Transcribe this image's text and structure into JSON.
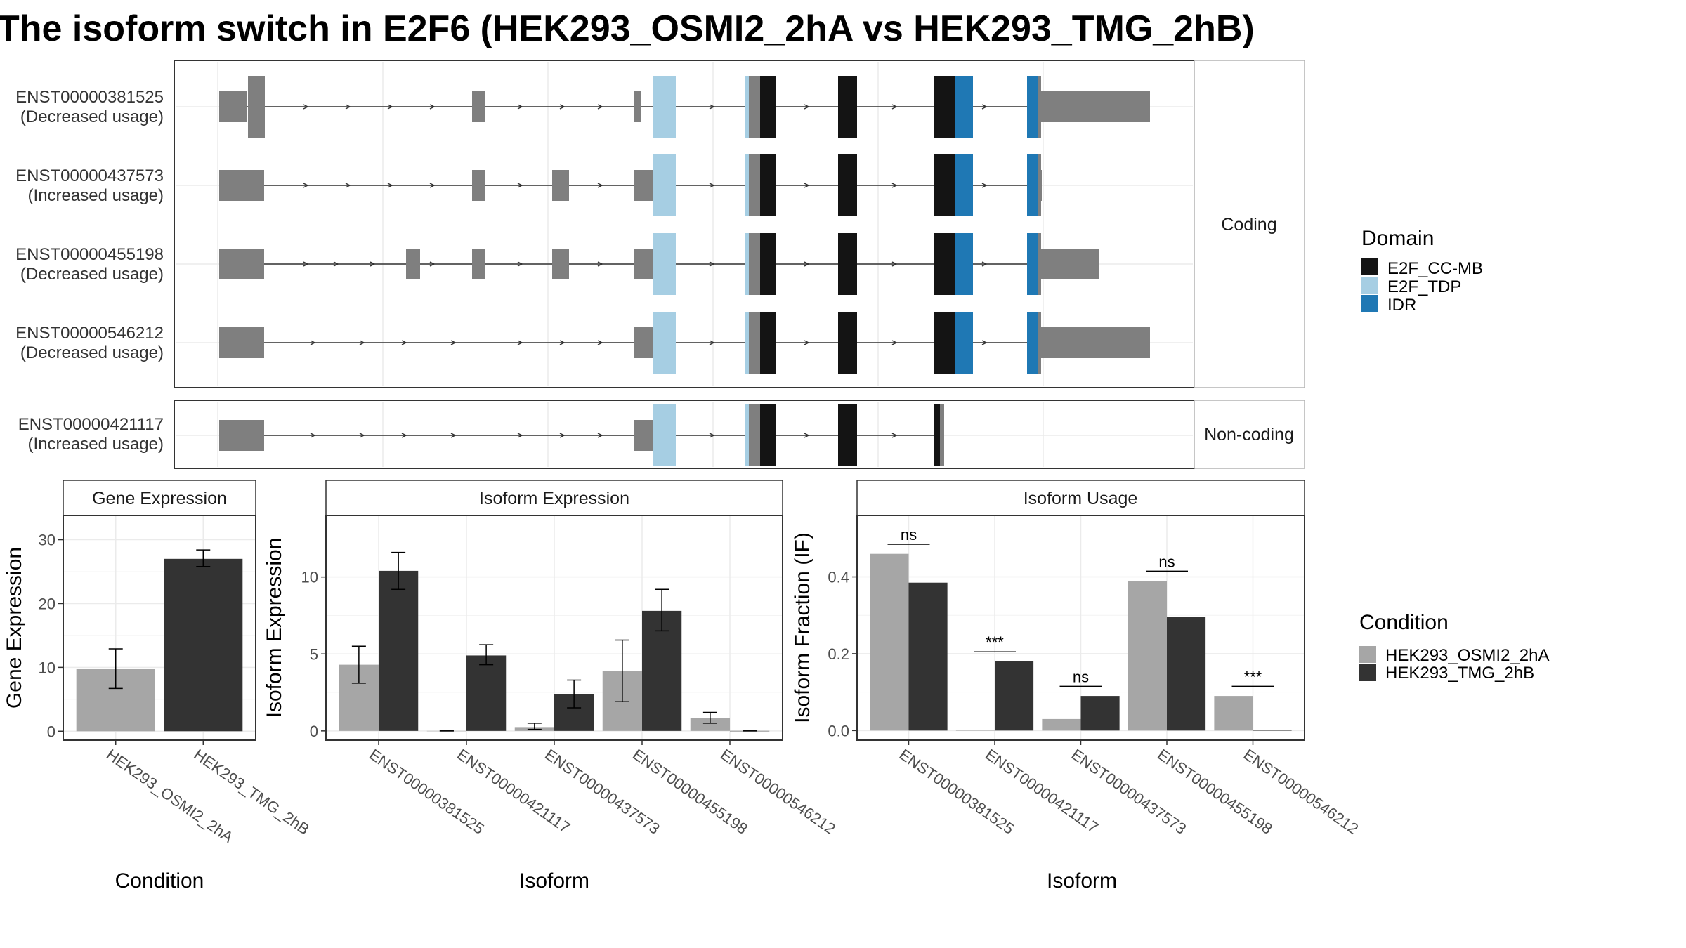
{
  "title": "The isoform switch in E2F6 (HEK293_OSMI2_2hA vs HEK293_TMG_2hB)",
  "colors": {
    "exon": "#7f7f7f",
    "domain_E2F_CC-MB": "#141414",
    "domain_E2F_TDP": "#a6cee3",
    "domain_IDR": "#1f78b4",
    "cond_HEK293_OSMI2_2hA": "#a6a6a6",
    "cond_HEK293_TMG_2hB": "#333333"
  },
  "transcripts": [
    {
      "id": "ENST00000381525",
      "usage": "(Decreased usage)",
      "group": "Coding"
    },
    {
      "id": "ENST00000437573",
      "usage": "(Increased usage)",
      "group": "Coding"
    },
    {
      "id": "ENST00000455198",
      "usage": "(Decreased usage)",
      "group": "Coding"
    },
    {
      "id": "ENST00000546212",
      "usage": "(Decreased usage)",
      "group": "Coding"
    },
    {
      "id": "ENST00000421117",
      "usage": "(Increased usage)",
      "group": "Non-coding"
    }
  ],
  "groups": [
    "Coding",
    "Non-coding"
  ],
  "legend_domain": {
    "title": "Domain",
    "items": [
      "E2F_CC-MB",
      "E2F_TDP",
      "IDR"
    ]
  },
  "legend_condition": {
    "title": "Condition",
    "items": [
      "HEK293_OSMI2_2hA",
      "HEK293_TMG_2hB"
    ]
  },
  "chart_data": [
    {
      "type": "bar",
      "title": "Gene Expression",
      "xlabel": "Condition",
      "ylabel": "Gene Expression",
      "categories": [
        "HEK293_OSMI2_2hA",
        "HEK293_TMG_2hB"
      ],
      "values": [
        9.8,
        27.0
      ],
      "errors": [
        [
          6.7,
          12.9
        ],
        [
          25.8,
          28.4
        ]
      ],
      "ylim": [
        -1.4,
        33.8
      ],
      "yticks": [
        0,
        10,
        20,
        30
      ],
      "grid": true
    },
    {
      "type": "bar",
      "title": "Isoform Expression",
      "xlabel": "Isoform",
      "ylabel": "Isoform Expression",
      "categories": [
        "ENST00000381525",
        "ENST00000421117",
        "ENST00000437573",
        "ENST00000455198",
        "ENST00000546212"
      ],
      "series": [
        {
          "name": "HEK293_OSMI2_2hA",
          "values": [
            4.3,
            0.0,
            0.25,
            3.9,
            0.85
          ],
          "errors": [
            [
              3.1,
              5.5
            ],
            [
              0.0,
              0.0
            ],
            [
              0.1,
              0.5
            ],
            [
              1.9,
              5.9
            ],
            [
              0.5,
              1.2
            ]
          ]
        },
        {
          "name": "HEK293_TMG_2hB",
          "values": [
            10.4,
            4.9,
            2.4,
            7.8,
            0.0
          ],
          "errors": [
            [
              9.2,
              11.6
            ],
            [
              4.3,
              5.6
            ],
            [
              1.5,
              3.3
            ],
            [
              6.5,
              9.2
            ],
            [
              0.0,
              0.0
            ]
          ]
        }
      ],
      "ylim": [
        -0.6,
        14.0
      ],
      "yticks": [
        0,
        5,
        10
      ],
      "grid": true
    },
    {
      "type": "bar",
      "title": "Isoform Usage",
      "xlabel": "Isoform",
      "ylabel": "Isoform Fraction (IF)",
      "categories": [
        "ENST00000381525",
        "ENST00000421117",
        "ENST00000437573",
        "ENST00000455198",
        "ENST00000546212"
      ],
      "series": [
        {
          "name": "HEK293_OSMI2_2hA",
          "values": [
            0.46,
            0.0,
            0.03,
            0.39,
            0.09
          ]
        },
        {
          "name": "HEK293_TMG_2hB",
          "values": [
            0.385,
            0.18,
            0.09,
            0.295,
            0.0
          ]
        }
      ],
      "significance": [
        "ns",
        "***",
        "ns",
        "ns",
        "***"
      ],
      "sig_y": [
        0.485,
        0.205,
        0.115,
        0.415,
        0.115
      ],
      "ylim": [
        -0.025,
        0.56
      ],
      "yticks": [
        0.0,
        0.2,
        0.4
      ],
      "ytick_labels": [
        "0.0",
        "0.2",
        "0.4"
      ],
      "grid": true
    }
  ]
}
